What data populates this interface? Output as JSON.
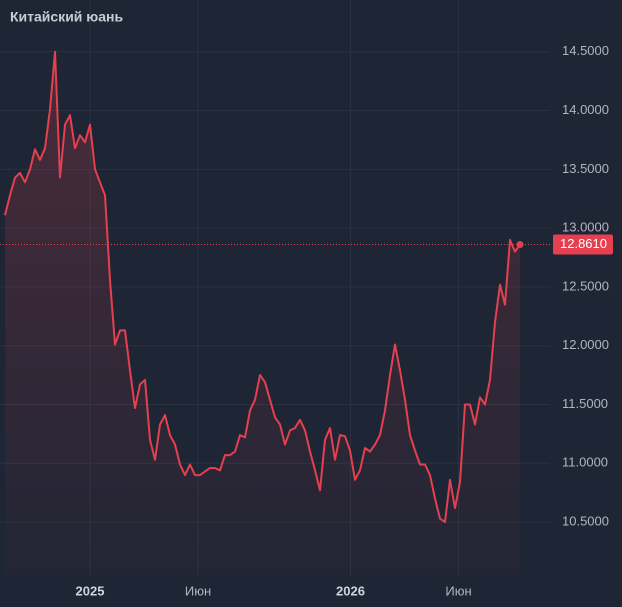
{
  "chart_data": {
    "type": "line",
    "title": "Китайский юань",
    "x": [
      -17,
      -16,
      -15,
      -14,
      -13,
      -12,
      -11,
      -10,
      -9,
      -8,
      -7,
      -6,
      -5,
      -4,
      -3,
      -2,
      -1,
      0,
      1,
      2,
      3,
      4,
      5,
      6,
      7,
      8,
      9,
      10,
      11,
      12,
      13,
      14,
      15,
      16,
      17,
      18,
      19,
      20,
      21,
      22,
      23,
      24,
      25,
      26,
      27,
      28,
      29,
      30,
      31,
      32,
      33,
      34,
      35,
      36,
      37,
      38,
      39,
      40,
      41,
      42,
      43,
      44,
      45,
      46,
      47,
      48,
      49,
      50,
      51,
      52,
      53,
      54,
      55,
      56,
      57,
      58,
      59,
      60,
      61,
      62,
      63,
      64,
      65,
      66,
      67,
      68,
      69,
      70,
      71,
      72,
      73,
      74,
      75,
      76,
      77,
      78,
      79,
      80,
      81,
      82,
      83,
      84,
      85,
      86
    ],
    "series": [
      {
        "name": "Китайский юань",
        "color": "#e5404f",
        "values": [
          13.11,
          13.28,
          13.43,
          13.47,
          13.39,
          13.5,
          13.67,
          13.58,
          13.68,
          14.01,
          14.5,
          13.43,
          13.88,
          13.96,
          13.68,
          13.79,
          13.73,
          13.88,
          13.5,
          13.39,
          13.28,
          12.56,
          12.01,
          12.13,
          12.13,
          11.79,
          11.47,
          11.67,
          11.71,
          11.2,
          11.03,
          11.33,
          11.41,
          11.24,
          11.16,
          10.99,
          10.9,
          10.99,
          10.9,
          10.9,
          10.93,
          10.96,
          10.96,
          10.94,
          11.07,
          11.07,
          11.1,
          11.24,
          11.22,
          11.45,
          11.54,
          11.75,
          11.69,
          11.54,
          11.39,
          11.33,
          11.16,
          11.28,
          11.3,
          11.37,
          11.28,
          11.1,
          10.94,
          10.77,
          11.2,
          11.3,
          11.03,
          11.24,
          11.23,
          11.11,
          10.86,
          10.94,
          11.13,
          11.1,
          11.16,
          11.24,
          11.45,
          11.75,
          12.01,
          11.79,
          11.54,
          11.24,
          11.11,
          10.99,
          10.99,
          10.9,
          10.7,
          10.53,
          10.5,
          10.86,
          10.62,
          10.84,
          11.5,
          11.5,
          11.33,
          11.56,
          11.5,
          11.71,
          12.2,
          12.52,
          12.35,
          12.9,
          12.8,
          12.861
        ]
      }
    ],
    "last_price": {
      "value": 12.861,
      "label": "12.8610"
    },
    "xlim": [
      -18,
      92
    ],
    "xticks": [
      {
        "value": 0,
        "label": "2025"
      },
      {
        "value": 21.6,
        "label": "Июн"
      },
      {
        "value": 52.1,
        "label": "2026"
      },
      {
        "value": 73.7,
        "label": "Июн"
      }
    ],
    "ylim": [
      10.05,
      14.94
    ],
    "yticks": [
      {
        "value": 10.5,
        "label": "10.5000"
      },
      {
        "value": 11,
        "label": "11.0000"
      },
      {
        "value": 11.5,
        "label": "11.5000"
      },
      {
        "value": 12,
        "label": "12.0000"
      },
      {
        "value": 12.5,
        "label": "12.5000"
      },
      {
        "value": 13,
        "label": "13.0000"
      },
      {
        "value": 13.5,
        "label": "13.5000"
      },
      {
        "value": 14,
        "label": "14.0000"
      },
      {
        "value": 14.5,
        "label": "14.5000"
      }
    ],
    "grid": true
  }
}
